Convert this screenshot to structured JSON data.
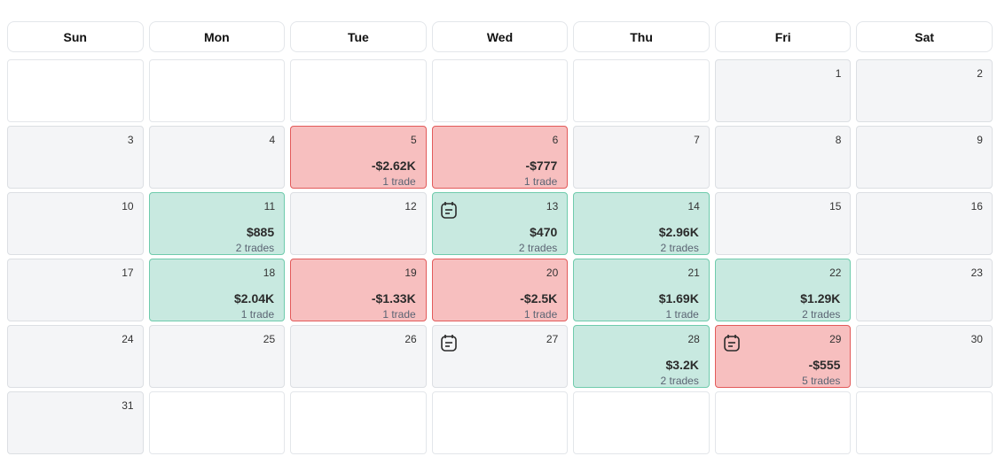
{
  "weekdays": [
    "Sun",
    "Mon",
    "Tue",
    "Wed",
    "Thu",
    "Fri",
    "Sat"
  ],
  "colors": {
    "loss_bg": "#f7bfbf",
    "loss_border": "#e25a5a",
    "win_bg": "#c8e9e0",
    "win_border": "#6fcbac"
  },
  "weeks": [
    [
      {},
      {},
      {},
      {},
      {},
      {
        "day": "1"
      },
      {
        "day": "2"
      }
    ],
    [
      {
        "day": "3"
      },
      {
        "day": "4"
      },
      {
        "day": "5",
        "pnl": "-$2.62K",
        "trades": "1 trade",
        "status": "loss"
      },
      {
        "day": "6",
        "pnl": "-$777",
        "trades": "1 trade",
        "status": "loss"
      },
      {
        "day": "7"
      },
      {
        "day": "8"
      },
      {
        "day": "9"
      }
    ],
    [
      {
        "day": "10"
      },
      {
        "day": "11",
        "pnl": "$885",
        "trades": "2 trades",
        "status": "win"
      },
      {
        "day": "12"
      },
      {
        "day": "13",
        "pnl": "$470",
        "trades": "2 trades",
        "status": "win",
        "note": true
      },
      {
        "day": "14",
        "pnl": "$2.96K",
        "trades": "2 trades",
        "status": "win"
      },
      {
        "day": "15"
      },
      {
        "day": "16"
      }
    ],
    [
      {
        "day": "17"
      },
      {
        "day": "18",
        "pnl": "$2.04K",
        "trades": "1 trade",
        "status": "win"
      },
      {
        "day": "19",
        "pnl": "-$1.33K",
        "trades": "1 trade",
        "status": "loss"
      },
      {
        "day": "20",
        "pnl": "-$2.5K",
        "trades": "1 trade",
        "status": "loss"
      },
      {
        "day": "21",
        "pnl": "$1.69K",
        "trades": "1 trade",
        "status": "win"
      },
      {
        "day": "22",
        "pnl": "$1.29K",
        "trades": "2 trades",
        "status": "win"
      },
      {
        "day": "23"
      }
    ],
    [
      {
        "day": "24"
      },
      {
        "day": "25"
      },
      {
        "day": "26"
      },
      {
        "day": "27",
        "note": true
      },
      {
        "day": "28",
        "pnl": "$3.2K",
        "trades": "2 trades",
        "status": "win"
      },
      {
        "day": "29",
        "pnl": "-$555",
        "trades": "5 trades",
        "status": "loss",
        "note": true
      },
      {
        "day": "30"
      }
    ],
    [
      {
        "day": "31"
      },
      {},
      {},
      {},
      {},
      {},
      {}
    ]
  ]
}
